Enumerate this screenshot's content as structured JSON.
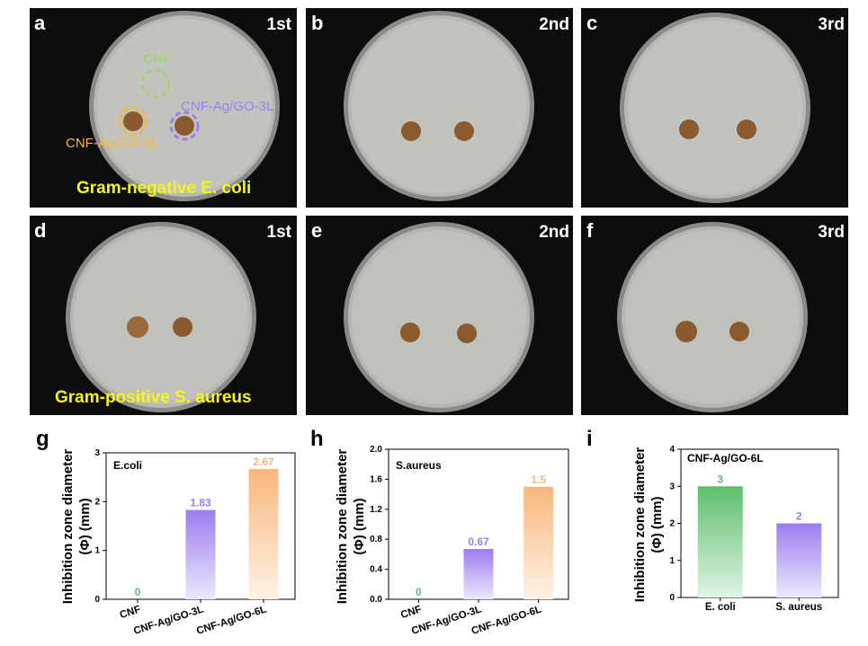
{
  "photos": [
    {
      "label": "a",
      "round": "1st",
      "caption": "Gram-negative E. coli",
      "annotations": {
        "cnf": "CNF",
        "ag3": "CNF-Ag/GO-3L",
        "ag6": "CNF-Ag/GO-6L"
      },
      "colors": {
        "cnf": "#9ed36a",
        "ag3": "#9f7df2",
        "ag6": "#f7b83a"
      }
    },
    {
      "label": "b",
      "round": "2nd"
    },
    {
      "label": "c",
      "round": "3rd"
    },
    {
      "label": "d",
      "round": "1st",
      "caption": "Gram-positive S. aureus"
    },
    {
      "label": "e",
      "round": "2nd"
    },
    {
      "label": "f",
      "round": "3rd"
    }
  ],
  "chart_data": [
    {
      "panel": "g",
      "type": "bar",
      "title": "E.coli",
      "ylabel": "Inhibition zone diameter\n(Φ) (mm)",
      "categories": [
        "CNF",
        "CNF-Ag/GO-3L",
        "CNF-Ag/GO-6L"
      ],
      "values": [
        0,
        1.83,
        2.67
      ],
      "value_labels": [
        "0",
        "1.83",
        "2.67"
      ],
      "ylim": [
        0,
        3
      ],
      "yticks": [
        "0",
        "1",
        "2",
        "3"
      ],
      "colors": [
        "#5cbf6c",
        "#9b7df0",
        "#f9b77c"
      ]
    },
    {
      "panel": "h",
      "type": "bar",
      "title": "S.aureus",
      "ylabel": "Inhibition zone diameter\n(Φ) (mm)",
      "categories": [
        "CNF",
        "CNF-Ag/GO-3L",
        "CNF-Ag/GO-6L"
      ],
      "values": [
        0,
        0.67,
        1.5
      ],
      "value_labels": [
        "0",
        "0.67",
        "1.5"
      ],
      "ylim": [
        0,
        2.0
      ],
      "yticks": [
        "0.0",
        "0.4",
        "0.8",
        "1.2",
        "1.6",
        "2.0"
      ],
      "colors": [
        "#5cbf6c",
        "#9b7df0",
        "#f9b77c"
      ]
    },
    {
      "panel": "i",
      "type": "bar",
      "title": "CNF-Ag/GO-6L",
      "ylabel": "Inhibition zone diameter\n(Φ) (mm)",
      "categories": [
        "E. coli",
        "S. aureus"
      ],
      "values": [
        3,
        2
      ],
      "value_labels": [
        "3",
        "2"
      ],
      "ylim": [
        0,
        4
      ],
      "yticks": [
        "0",
        "1",
        "2",
        "3",
        "4"
      ],
      "colors": [
        "#5cbf6c",
        "#9b7df0"
      ]
    }
  ]
}
